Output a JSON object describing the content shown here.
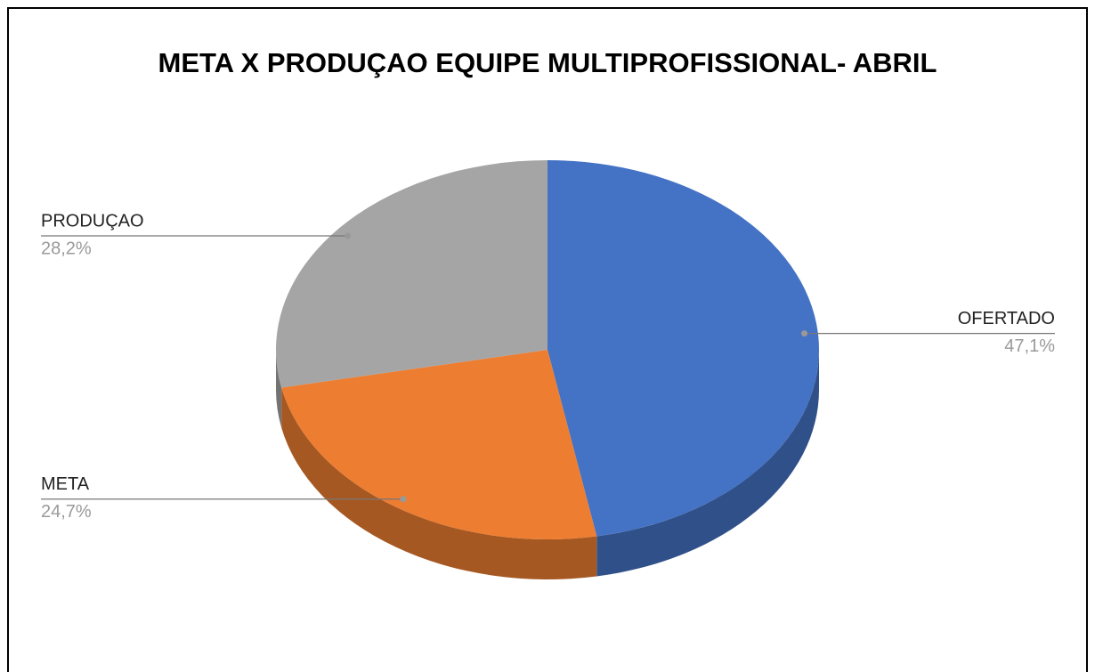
{
  "chart_data": {
    "type": "pie",
    "title": "META X PRODUÇAO EQUIPE MULTIPROFISSIONAL- ABRIL",
    "categories": [
      "OFERTADO",
      "META",
      "PRODUÇAO"
    ],
    "values": [
      47.1,
      24.7,
      28.2
    ],
    "value_labels": [
      "47,1%",
      "24,7%",
      "28,2%"
    ],
    "colors": [
      "#4472c4",
      "#ed7d31",
      "#a5a5a5"
    ]
  }
}
